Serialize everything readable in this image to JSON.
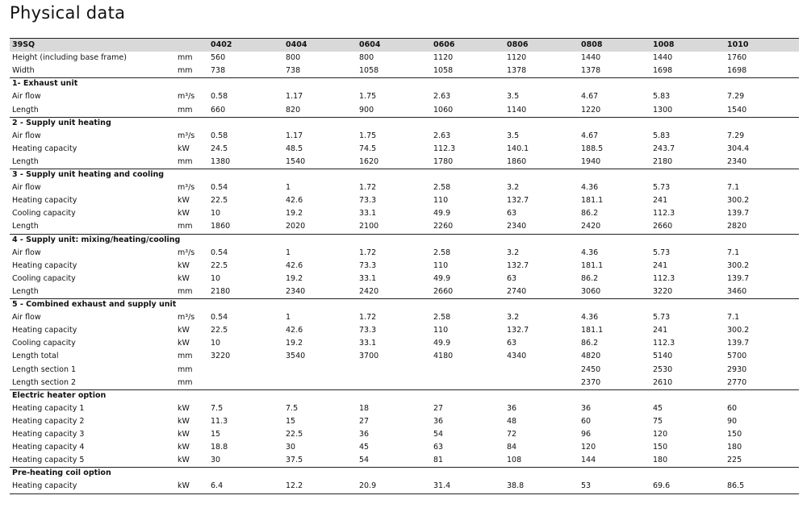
{
  "title": "Physical data",
  "table": {
    "header": [
      "39SQ",
      "0402",
      "0404",
      "0604",
      "0606",
      "0806",
      "0808",
      "1008",
      "1010"
    ],
    "sections": [
      {
        "rows": [
          {
            "label": "Height (including base frame)",
            "unit": "mm",
            "values": [
              "560",
              "800",
              "800",
              "1120",
              "1120",
              "1440",
              "1440",
              "1760"
            ]
          },
          {
            "label": "Width",
            "unit": "mm",
            "values": [
              "738",
              "738",
              "1058",
              "1058",
              "1378",
              "1378",
              "1698",
              "1698"
            ]
          }
        ]
      },
      {
        "title": "1- Exhaust unit",
        "rows": [
          {
            "label": "Air flow",
            "unit": "m³/s",
            "values": [
              "0.58",
              "1.17",
              "1.75",
              "2.63",
              "3.5",
              "4.67",
              "5.83",
              "7.29"
            ]
          },
          {
            "label": "Length",
            "unit": "mm",
            "values": [
              "660",
              "820",
              "900",
              "1060",
              "1140",
              "1220",
              "1300",
              "1540"
            ]
          }
        ]
      },
      {
        "title": "2 - Supply unit heating",
        "rows": [
          {
            "label": "Air flow",
            "unit": "m³/s",
            "values": [
              "0.58",
              "1.17",
              "1.75",
              "2.63",
              "3.5",
              "4.67",
              "5.83",
              "7.29"
            ]
          },
          {
            "label": "Heating capacity",
            "unit": "kW",
            "values": [
              "24.5",
              "48.5",
              "74.5",
              "112.3",
              "140.1",
              "188.5",
              "243.7",
              "304.4"
            ]
          },
          {
            "label": "Length",
            "unit": "mm",
            "values": [
              "1380",
              "1540",
              "1620",
              "1780",
              "1860",
              "1940",
              "2180",
              "2340"
            ]
          }
        ]
      },
      {
        "title": "3 - Supply unit heating and cooling",
        "rows": [
          {
            "label": "Air flow",
            "unit": "m³/s",
            "values": [
              "0.54",
              "1",
              "1.72",
              "2.58",
              "3.2",
              "4.36",
              "5.73",
              "7.1"
            ]
          },
          {
            "label": "Heating capacity",
            "unit": "kW",
            "values": [
              "22.5",
              "42.6",
              "73.3",
              "110",
              "132.7",
              "181.1",
              "241",
              "300.2"
            ]
          },
          {
            "label": "Cooling capacity",
            "unit": "kW",
            "values": [
              "10",
              "19.2",
              "33.1",
              "49.9",
              "63",
              "86.2",
              "112.3",
              "139.7"
            ]
          },
          {
            "label": "Length",
            "unit": "mm",
            "values": [
              "1860",
              "2020",
              "2100",
              "2260",
              "2340",
              "2420",
              "2660",
              "2820"
            ]
          }
        ]
      },
      {
        "title": "4 - Supply unit: mixing/heating/cooling",
        "rows": [
          {
            "label": "Air flow",
            "unit": "m³/s",
            "values": [
              "0.54",
              "1",
              "1.72",
              "2.58",
              "3.2",
              "4.36",
              "5.73",
              "7.1"
            ]
          },
          {
            "label": "Heating capacity",
            "unit": "kW",
            "values": [
              "22.5",
              "42.6",
              "73.3",
              "110",
              "132.7",
              "181.1",
              "241",
              "300.2"
            ]
          },
          {
            "label": "Cooling capacity",
            "unit": "kW",
            "values": [
              "10",
              "19.2",
              "33.1",
              "49.9",
              "63",
              "86.2",
              "112.3",
              "139.7"
            ]
          },
          {
            "label": "Length",
            "unit": "mm",
            "values": [
              "2180",
              "2340",
              "2420",
              "2660",
              "2740",
              "3060",
              "3220",
              "3460"
            ]
          }
        ]
      },
      {
        "title": "5 - Combined exhaust and supply unit",
        "rows": [
          {
            "label": "Air flow",
            "unit": "m³/s",
            "values": [
              "0.54",
              "1",
              "1.72",
              "2.58",
              "3.2",
              "4.36",
              "5.73",
              "7.1"
            ]
          },
          {
            "label": "Heating capacity",
            "unit": "kW",
            "values": [
              "22.5",
              "42.6",
              "73.3",
              "110",
              "132.7",
              "181.1",
              "241",
              "300.2"
            ]
          },
          {
            "label": "Cooling capacity",
            "unit": "kW",
            "values": [
              "10",
              "19.2",
              "33.1",
              "49.9",
              "63",
              "86.2",
              "112.3",
              "139.7"
            ]
          },
          {
            "label": "Length total",
            "unit": "mm",
            "values": [
              "3220",
              "3540",
              "3700",
              "4180",
              "4340",
              "4820",
              "5140",
              "5700"
            ]
          },
          {
            "label": "Length section 1",
            "unit": "mm",
            "values": [
              null,
              null,
              null,
              null,
              null,
              "2450",
              "2530",
              "2930"
            ]
          },
          {
            "label": "Length section 2",
            "unit": "mm",
            "values": [
              null,
              null,
              null,
              null,
              null,
              "2370",
              "2610",
              "2770"
            ]
          }
        ]
      },
      {
        "title": "Electric heater option",
        "rows": [
          {
            "label": "Heating capacity 1",
            "unit": "kW",
            "values": [
              "7.5",
              "7.5",
              "18",
              "27",
              "36",
              "36",
              "45",
              "60"
            ]
          },
          {
            "label": "Heating capacity 2",
            "unit": "kW",
            "values": [
              "11.3",
              "15",
              "27",
              "36",
              "48",
              "60",
              "75",
              "90"
            ]
          },
          {
            "label": "Heating capacity 3",
            "unit": "kW",
            "values": [
              "15",
              "22.5",
              "36",
              "54",
              "72",
              "96",
              "120",
              "150"
            ]
          },
          {
            "label": "Heating capacity 4",
            "unit": "kW",
            "values": [
              "18.8",
              "30",
              "45",
              "63",
              "84",
              "120",
              "150",
              "180"
            ]
          },
          {
            "label": "Heating capacity 5",
            "unit": "kW",
            "values": [
              "30",
              "37.5",
              "54",
              "81",
              "108",
              "144",
              "180",
              "225"
            ]
          }
        ]
      },
      {
        "title": "Pre-heating coil option",
        "rows": [
          {
            "label": "Heating capacity",
            "unit": "kW",
            "values": [
              "6.4",
              "12.2",
              "20.9",
              "31.4",
              "38.8",
              "53",
              "69.6",
              "86.5"
            ]
          }
        ]
      }
    ]
  }
}
